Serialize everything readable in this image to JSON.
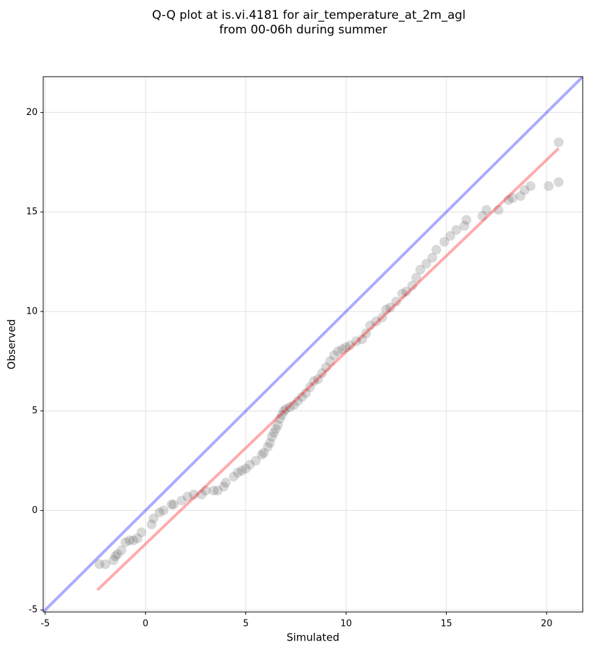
{
  "chart_data": {
    "type": "scatter",
    "title": "Q-Q plot at is.vi.4181 for air_temperature_at_2m_agl",
    "subtitle": "from 00-06h during summer",
    "xlabel": "Simulated",
    "ylabel": "Observed",
    "xlim": [
      -5.1,
      21.8
    ],
    "ylim": [
      -5.1,
      21.8
    ],
    "xticks": [
      -5,
      0,
      5,
      10,
      15,
      20
    ],
    "yticks": [
      -5,
      0,
      5,
      10,
      15,
      20
    ],
    "grid": true,
    "points": {
      "color": "#404040",
      "alpha": 0.2,
      "x": [
        -2.3,
        -2.0,
        -1.6,
        -1.5,
        -1.4,
        -1.2,
        -1.0,
        -0.8,
        -0.6,
        -0.4,
        -0.2,
        0.3,
        0.4,
        0.7,
        0.9,
        1.3,
        1.4,
        1.8,
        2.1,
        2.4,
        2.8,
        3.0,
        3.4,
        3.6,
        3.9,
        4.0,
        4.4,
        4.6,
        4.8,
        5.0,
        5.2,
        5.5,
        5.8,
        5.9,
        6.1,
        6.2,
        6.3,
        6.4,
        6.5,
        6.6,
        6.7,
        6.8,
        6.9,
        7.0,
        7.2,
        7.4,
        7.6,
        7.8,
        8.0,
        8.2,
        8.4,
        8.6,
        8.8,
        9.0,
        9.2,
        9.4,
        9.6,
        9.8,
        10.0,
        10.2,
        10.5,
        10.8,
        11.0,
        11.2,
        11.5,
        11.8,
        12.0,
        12.2,
        12.5,
        12.8,
        13.0,
        13.3,
        13.5,
        13.7,
        14.0,
        14.3,
        14.5,
        14.9,
        15.2,
        15.5,
        15.9,
        16.0,
        16.8,
        17.0,
        17.6,
        18.1,
        18.3,
        18.7,
        18.9,
        19.2,
        20.1,
        20.6,
        20.6
      ],
      "y": [
        -2.7,
        -2.7,
        -2.5,
        -2.3,
        -2.2,
        -2.0,
        -1.6,
        -1.5,
        -1.5,
        -1.4,
        -1.1,
        -0.7,
        -0.4,
        -0.1,
        0.0,
        0.3,
        0.3,
        0.5,
        0.7,
        0.8,
        0.8,
        1.0,
        1.0,
        1.0,
        1.2,
        1.4,
        1.7,
        1.9,
        2.0,
        2.1,
        2.3,
        2.5,
        2.8,
        2.9,
        3.2,
        3.4,
        3.7,
        3.9,
        4.1,
        4.3,
        4.6,
        4.8,
        5.0,
        5.1,
        5.2,
        5.3,
        5.5,
        5.7,
        5.9,
        6.2,
        6.5,
        6.6,
        6.9,
        7.2,
        7.5,
        7.8,
        8.0,
        8.1,
        8.2,
        8.3,
        8.5,
        8.6,
        8.9,
        9.3,
        9.5,
        9.7,
        10.1,
        10.2,
        10.5,
        10.9,
        11.0,
        11.3,
        11.7,
        12.1,
        12.4,
        12.7,
        13.1,
        13.5,
        13.8,
        14.1,
        14.3,
        14.6,
        14.8,
        15.1,
        15.1,
        15.6,
        15.7,
        15.8,
        16.1,
        16.3,
        16.3,
        16.5,
        18.5
      ]
    },
    "lines": [
      {
        "color": "#0000ff",
        "alpha": 0.33,
        "x": [
          -5.1,
          21.8
        ],
        "y": [
          -5.1,
          21.8
        ]
      },
      {
        "color": "#ff0000",
        "alpha": 0.33,
        "x": [
          -2.4,
          20.6
        ],
        "y": [
          -4.0,
          18.2
        ]
      }
    ]
  }
}
